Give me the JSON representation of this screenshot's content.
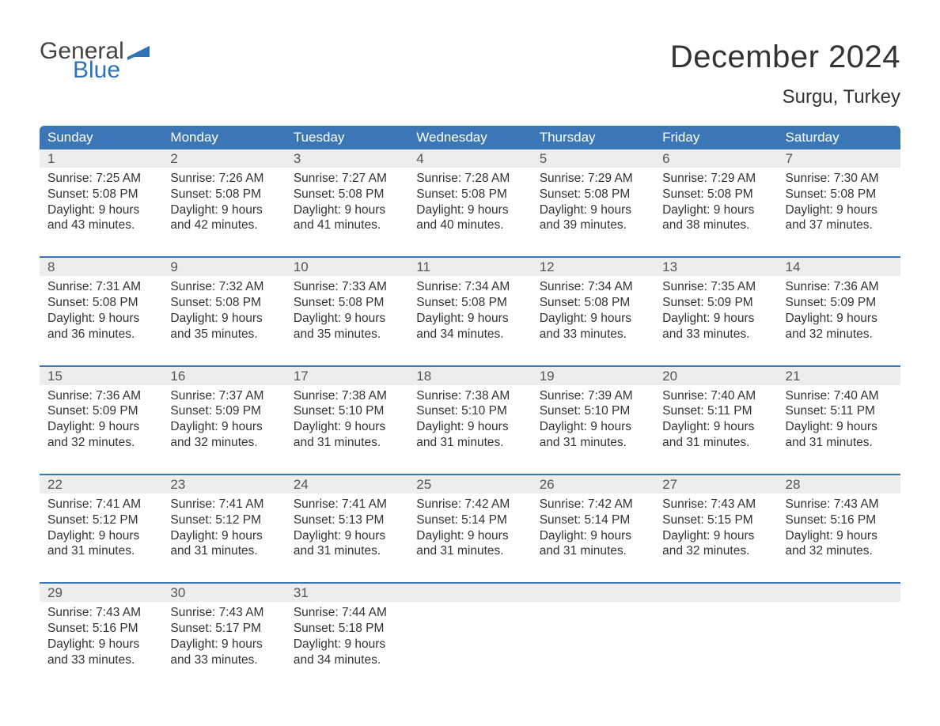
{
  "logo": {
    "text_top": "General",
    "text_bottom": "Blue",
    "flag_color": "#2f73b6",
    "text_color_top": "#444444",
    "text_color_bottom": "#2f73b6"
  },
  "title": "December 2024",
  "location": "Surgu, Turkey",
  "header_bg": "#3b77b7",
  "header_text_color": "#ffffff",
  "daynum_bg": "#ededed",
  "week_border_color": "#3b77b7",
  "page_bg": "#ffffff",
  "text_color": "#333333",
  "day_headers": [
    "Sunday",
    "Monday",
    "Tuesday",
    "Wednesday",
    "Thursday",
    "Friday",
    "Saturday"
  ],
  "weeks": [
    [
      {
        "n": "1",
        "sunrise": "Sunrise: 7:25 AM",
        "sunset": "Sunset: 5:08 PM",
        "d1": "Daylight: 9 hours",
        "d2": "and 43 minutes."
      },
      {
        "n": "2",
        "sunrise": "Sunrise: 7:26 AM",
        "sunset": "Sunset: 5:08 PM",
        "d1": "Daylight: 9 hours",
        "d2": "and 42 minutes."
      },
      {
        "n": "3",
        "sunrise": "Sunrise: 7:27 AM",
        "sunset": "Sunset: 5:08 PM",
        "d1": "Daylight: 9 hours",
        "d2": "and 41 minutes."
      },
      {
        "n": "4",
        "sunrise": "Sunrise: 7:28 AM",
        "sunset": "Sunset: 5:08 PM",
        "d1": "Daylight: 9 hours",
        "d2": "and 40 minutes."
      },
      {
        "n": "5",
        "sunrise": "Sunrise: 7:29 AM",
        "sunset": "Sunset: 5:08 PM",
        "d1": "Daylight: 9 hours",
        "d2": "and 39 minutes."
      },
      {
        "n": "6",
        "sunrise": "Sunrise: 7:29 AM",
        "sunset": "Sunset: 5:08 PM",
        "d1": "Daylight: 9 hours",
        "d2": "and 38 minutes."
      },
      {
        "n": "7",
        "sunrise": "Sunrise: 7:30 AM",
        "sunset": "Sunset: 5:08 PM",
        "d1": "Daylight: 9 hours",
        "d2": "and 37 minutes."
      }
    ],
    [
      {
        "n": "8",
        "sunrise": "Sunrise: 7:31 AM",
        "sunset": "Sunset: 5:08 PM",
        "d1": "Daylight: 9 hours",
        "d2": "and 36 minutes."
      },
      {
        "n": "9",
        "sunrise": "Sunrise: 7:32 AM",
        "sunset": "Sunset: 5:08 PM",
        "d1": "Daylight: 9 hours",
        "d2": "and 35 minutes."
      },
      {
        "n": "10",
        "sunrise": "Sunrise: 7:33 AM",
        "sunset": "Sunset: 5:08 PM",
        "d1": "Daylight: 9 hours",
        "d2": "and 35 minutes."
      },
      {
        "n": "11",
        "sunrise": "Sunrise: 7:34 AM",
        "sunset": "Sunset: 5:08 PM",
        "d1": "Daylight: 9 hours",
        "d2": "and 34 minutes."
      },
      {
        "n": "12",
        "sunrise": "Sunrise: 7:34 AM",
        "sunset": "Sunset: 5:08 PM",
        "d1": "Daylight: 9 hours",
        "d2": "and 33 minutes."
      },
      {
        "n": "13",
        "sunrise": "Sunrise: 7:35 AM",
        "sunset": "Sunset: 5:09 PM",
        "d1": "Daylight: 9 hours",
        "d2": "and 33 minutes."
      },
      {
        "n": "14",
        "sunrise": "Sunrise: 7:36 AM",
        "sunset": "Sunset: 5:09 PM",
        "d1": "Daylight: 9 hours",
        "d2": "and 32 minutes."
      }
    ],
    [
      {
        "n": "15",
        "sunrise": "Sunrise: 7:36 AM",
        "sunset": "Sunset: 5:09 PM",
        "d1": "Daylight: 9 hours",
        "d2": "and 32 minutes."
      },
      {
        "n": "16",
        "sunrise": "Sunrise: 7:37 AM",
        "sunset": "Sunset: 5:09 PM",
        "d1": "Daylight: 9 hours",
        "d2": "and 32 minutes."
      },
      {
        "n": "17",
        "sunrise": "Sunrise: 7:38 AM",
        "sunset": "Sunset: 5:10 PM",
        "d1": "Daylight: 9 hours",
        "d2": "and 31 minutes."
      },
      {
        "n": "18",
        "sunrise": "Sunrise: 7:38 AM",
        "sunset": "Sunset: 5:10 PM",
        "d1": "Daylight: 9 hours",
        "d2": "and 31 minutes."
      },
      {
        "n": "19",
        "sunrise": "Sunrise: 7:39 AM",
        "sunset": "Sunset: 5:10 PM",
        "d1": "Daylight: 9 hours",
        "d2": "and 31 minutes."
      },
      {
        "n": "20",
        "sunrise": "Sunrise: 7:40 AM",
        "sunset": "Sunset: 5:11 PM",
        "d1": "Daylight: 9 hours",
        "d2": "and 31 minutes."
      },
      {
        "n": "21",
        "sunrise": "Sunrise: 7:40 AM",
        "sunset": "Sunset: 5:11 PM",
        "d1": "Daylight: 9 hours",
        "d2": "and 31 minutes."
      }
    ],
    [
      {
        "n": "22",
        "sunrise": "Sunrise: 7:41 AM",
        "sunset": "Sunset: 5:12 PM",
        "d1": "Daylight: 9 hours",
        "d2": "and 31 minutes."
      },
      {
        "n": "23",
        "sunrise": "Sunrise: 7:41 AM",
        "sunset": "Sunset: 5:12 PM",
        "d1": "Daylight: 9 hours",
        "d2": "and 31 minutes."
      },
      {
        "n": "24",
        "sunrise": "Sunrise: 7:41 AM",
        "sunset": "Sunset: 5:13 PM",
        "d1": "Daylight: 9 hours",
        "d2": "and 31 minutes."
      },
      {
        "n": "25",
        "sunrise": "Sunrise: 7:42 AM",
        "sunset": "Sunset: 5:14 PM",
        "d1": "Daylight: 9 hours",
        "d2": "and 31 minutes."
      },
      {
        "n": "26",
        "sunrise": "Sunrise: 7:42 AM",
        "sunset": "Sunset: 5:14 PM",
        "d1": "Daylight: 9 hours",
        "d2": "and 31 minutes."
      },
      {
        "n": "27",
        "sunrise": "Sunrise: 7:43 AM",
        "sunset": "Sunset: 5:15 PM",
        "d1": "Daylight: 9 hours",
        "d2": "and 32 minutes."
      },
      {
        "n": "28",
        "sunrise": "Sunrise: 7:43 AM",
        "sunset": "Sunset: 5:16 PM",
        "d1": "Daylight: 9 hours",
        "d2": "and 32 minutes."
      }
    ],
    [
      {
        "n": "29",
        "sunrise": "Sunrise: 7:43 AM",
        "sunset": "Sunset: 5:16 PM",
        "d1": "Daylight: 9 hours",
        "d2": "and 33 minutes."
      },
      {
        "n": "30",
        "sunrise": "Sunrise: 7:43 AM",
        "sunset": "Sunset: 5:17 PM",
        "d1": "Daylight: 9 hours",
        "d2": "and 33 minutes."
      },
      {
        "n": "31",
        "sunrise": "Sunrise: 7:44 AM",
        "sunset": "Sunset: 5:18 PM",
        "d1": "Daylight: 9 hours",
        "d2": "and 34 minutes."
      },
      null,
      null,
      null,
      null
    ]
  ]
}
